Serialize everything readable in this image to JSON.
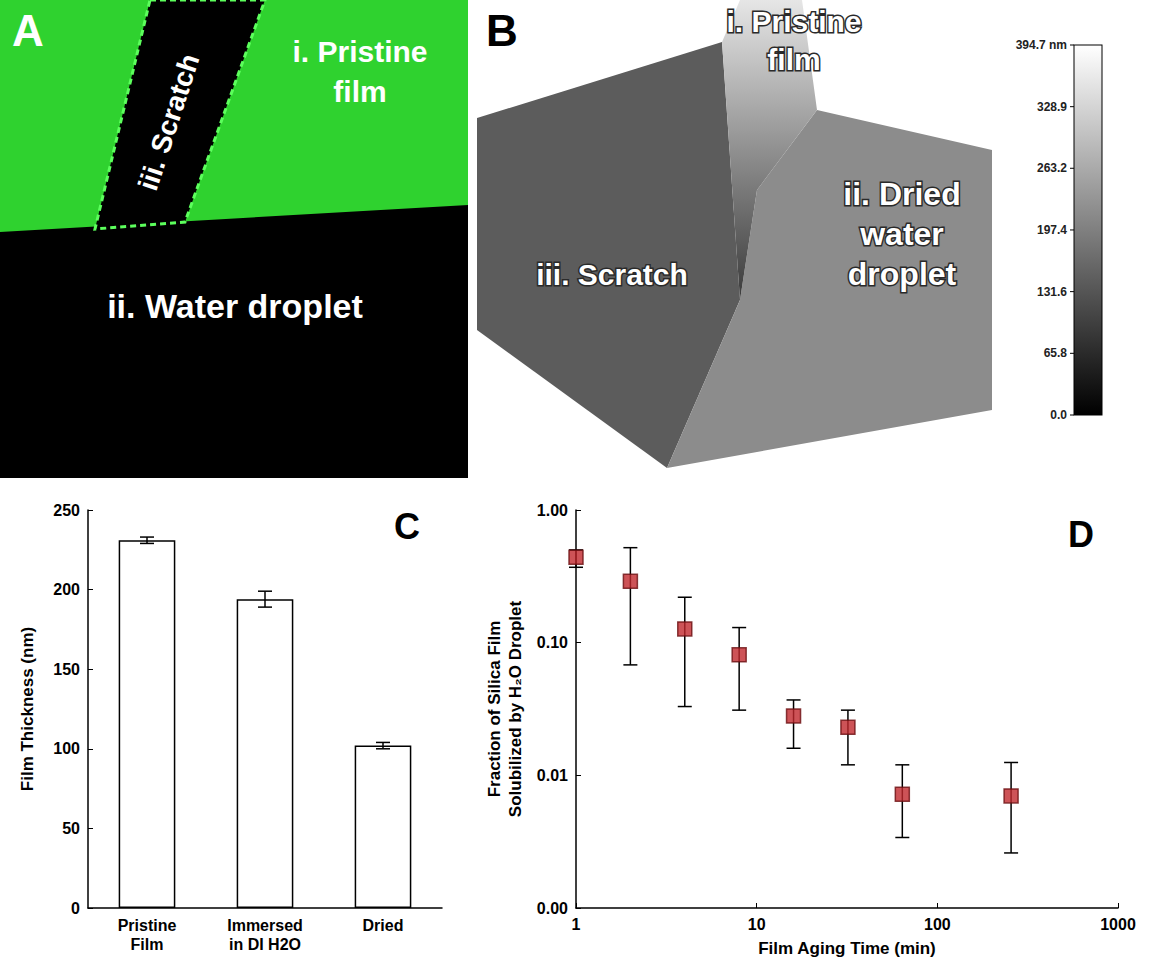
{
  "images": [
    {
      "panel": "A",
      "labels": {
        "pristine": "i. Pristine film",
        "droplet": "ii. Water droplet",
        "scratch": "iii. Scratch"
      }
    },
    {
      "panel": "B",
      "labels": {
        "pristine": "i. Pristine film",
        "droplet": "ii. Dried water droplet",
        "scratch": "iii. Scratch"
      },
      "colorbar": {
        "range": [
          0,
          394.7
        ],
        "ticks": [
          {
            "value": 0,
            "label": "0.0"
          },
          65.8,
          131.6,
          197.4,
          263.2,
          328.9,
          {
            "value": 394.7,
            "label": "394.7 nm"
          }
        ]
      }
    }
  ],
  "chart_data": [
    {
      "type": "bar",
      "panel": "C",
      "ylabel": "Film Thickness (nm)",
      "categories": [
        "Pristine Film",
        "Immersed in DI H2O",
        "Dried"
      ],
      "values": [
        231,
        194,
        102
      ],
      "errors": [
        2,
        5,
        2
      ],
      "color": "#ffffff",
      "ylim": [
        0,
        250
      ],
      "yticks": [
        0,
        50,
        100,
        150,
        200,
        250
      ],
      "grid": false
    },
    {
      "type": "scatter",
      "panel": "D",
      "xlabel": "Film Aging Time (min)",
      "ylabel": "Fraction of Silica Film Solubilized by H₂O Droplet",
      "x": [
        1,
        2,
        4,
        8,
        16,
        32,
        64,
        256
      ],
      "values": [
        0.44,
        0.29,
        0.127,
        0.081,
        0.028,
        0.023,
        0.0072,
        0.007
      ],
      "y_low": [
        0.37,
        0.068,
        0.033,
        0.031,
        0.016,
        0.012,
        0.0034,
        0.0026
      ],
      "y_high": [
        0.5,
        0.52,
        0.22,
        0.13,
        0.037,
        0.031,
        0.012,
        0.0125
      ],
      "xlim": [
        1,
        1000
      ],
      "xticks": [
        1,
        10,
        100,
        1000
      ],
      "ylim": [
        0.001,
        1
      ],
      "yticks": [
        {
          "value": 0.001,
          "label": "0.00"
        },
        {
          "value": 0.01,
          "label": "0.01"
        },
        {
          "value": 0.1,
          "label": "0.10"
        },
        {
          "value": 1,
          "label": "1.00"
        }
      ],
      "log": true,
      "marker": "square",
      "color": "#c0282d",
      "grid": false
    }
  ]
}
